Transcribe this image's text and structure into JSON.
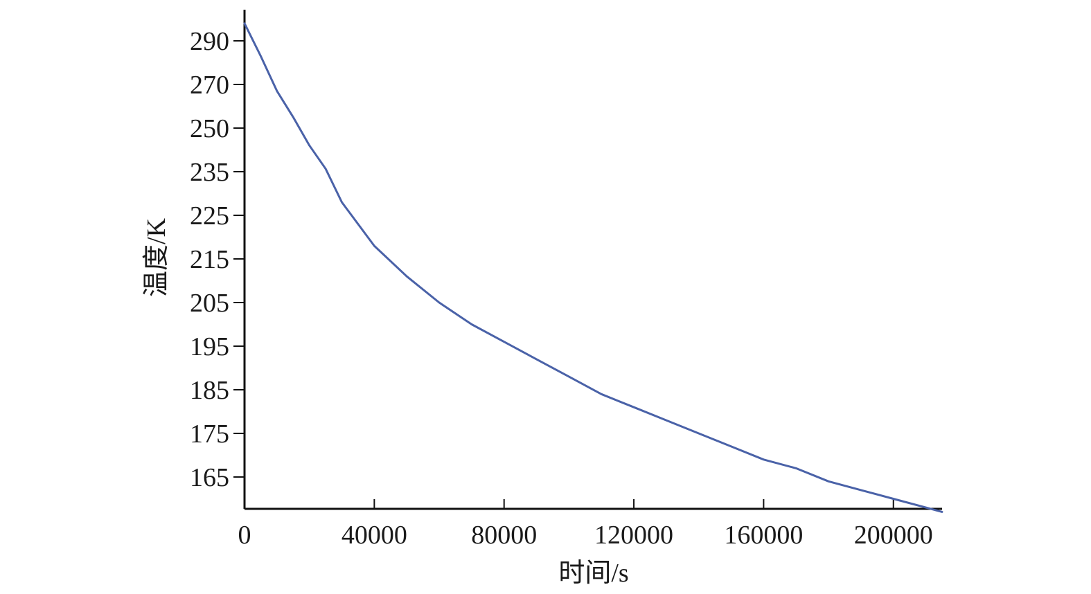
{
  "chart_data": {
    "type": "line",
    "title": "",
    "xlabel": "时间/s",
    "ylabel": "温度/K",
    "xlim": [
      0,
      215000
    ],
    "x_ticks": [
      0,
      40000,
      80000,
      120000,
      160000,
      200000
    ],
    "x_tick_labels": [
      "0",
      "40000",
      "80000",
      "120000",
      "160000",
      "200000"
    ],
    "y_ticks": [
      165,
      175,
      185,
      195,
      205,
      215,
      225,
      235,
      250,
      270,
      290
    ],
    "y_tick_labels": [
      "165",
      "175",
      "185",
      "195",
      "205",
      "215",
      "225",
      "235",
      "250",
      "270",
      "290"
    ],
    "grid": false,
    "legend": "none",
    "series": [
      {
        "color": "#4a62a8",
        "x": [
          0,
          5000,
          10000,
          15000,
          20000,
          25000,
          30000,
          40000,
          50000,
          60000,
          70000,
          80000,
          90000,
          100000,
          110000,
          120000,
          130000,
          140000,
          150000,
          160000,
          170000,
          180000,
          190000,
          200000,
          210000,
          215000
        ],
        "y": [
          298,
          283,
          267,
          255,
          244,
          236,
          228,
          218,
          211,
          205,
          200,
          196,
          192,
          188,
          184,
          181,
          178,
          175,
          172,
          169,
          167,
          164,
          162,
          160,
          158,
          157
        ]
      }
    ]
  }
}
